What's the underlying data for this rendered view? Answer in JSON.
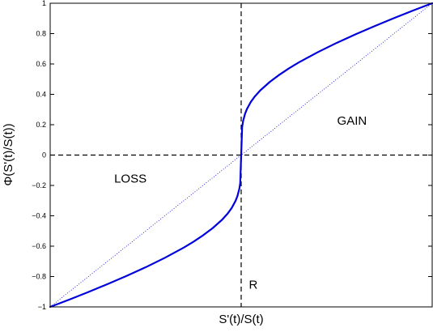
{
  "chart_data": {
    "type": "line",
    "xlabel": "S'(t)/S(t)",
    "ylabel": "Φ(S'(t)/S(t))",
    "xlim": [
      -1,
      1
    ],
    "ylim": [
      -1,
      1
    ],
    "x_ticks_visible": false,
    "yticks": [
      1,
      0.8,
      0.6,
      0.4,
      0.2,
      0,
      -0.2,
      -0.4,
      -0.6,
      -0.8,
      -1
    ],
    "ytick_labels": [
      "1",
      "0.8",
      "0.6",
      "0.4",
      "0.2",
      "0",
      "−0.2",
      "−0.4",
      "−0.6",
      "−0.8",
      "−1"
    ],
    "grid": false,
    "reference_lines": [
      {
        "orientation": "vertical",
        "x": 0,
        "style": "dashed",
        "color": "#000000"
      },
      {
        "orientation": "horizontal",
        "y": 0,
        "style": "dashed",
        "color": "#000000"
      }
    ],
    "series": [
      {
        "style": "dotted",
        "color": "#0000cc",
        "x": [
          -1,
          1
        ],
        "y": [
          -1,
          1
        ]
      },
      {
        "style": "solid",
        "color": "#0000dd",
        "x": [
          -1,
          -0.9,
          -0.8,
          -0.7,
          -0.6,
          -0.5,
          -0.4,
          -0.3,
          -0.25,
          -0.2,
          -0.15,
          -0.1,
          -0.07,
          -0.05,
          -0.03,
          -0.02,
          -0.01,
          -0.005,
          0,
          0.005,
          0.01,
          0.02,
          0.03,
          0.05,
          0.07,
          0.1,
          0.15,
          0.2,
          0.25,
          0.3,
          0.4,
          0.5,
          0.6,
          0.7,
          0.8,
          0.9,
          1
        ],
        "y": [
          -1,
          -0.952,
          -0.902,
          -0.85,
          -0.796,
          -0.739,
          -0.677,
          -0.609,
          -0.571,
          -0.529,
          -0.482,
          -0.426,
          -0.384,
          -0.349,
          -0.303,
          -0.271,
          -0.224,
          -0.184,
          0,
          0.184,
          0.224,
          0.271,
          0.303,
          0.349,
          0.384,
          0.426,
          0.482,
          0.529,
          0.571,
          0.609,
          0.677,
          0.739,
          0.796,
          0.85,
          0.902,
          0.952,
          1
        ]
      }
    ],
    "annotations": [
      {
        "text": "GAIN",
        "x": 0.58,
        "y": 0.2
      },
      {
        "text": "LOSS",
        "x": -0.58,
        "y": -0.18
      },
      {
        "text": "R",
        "x": 0.04,
        "y": -0.88
      }
    ]
  }
}
